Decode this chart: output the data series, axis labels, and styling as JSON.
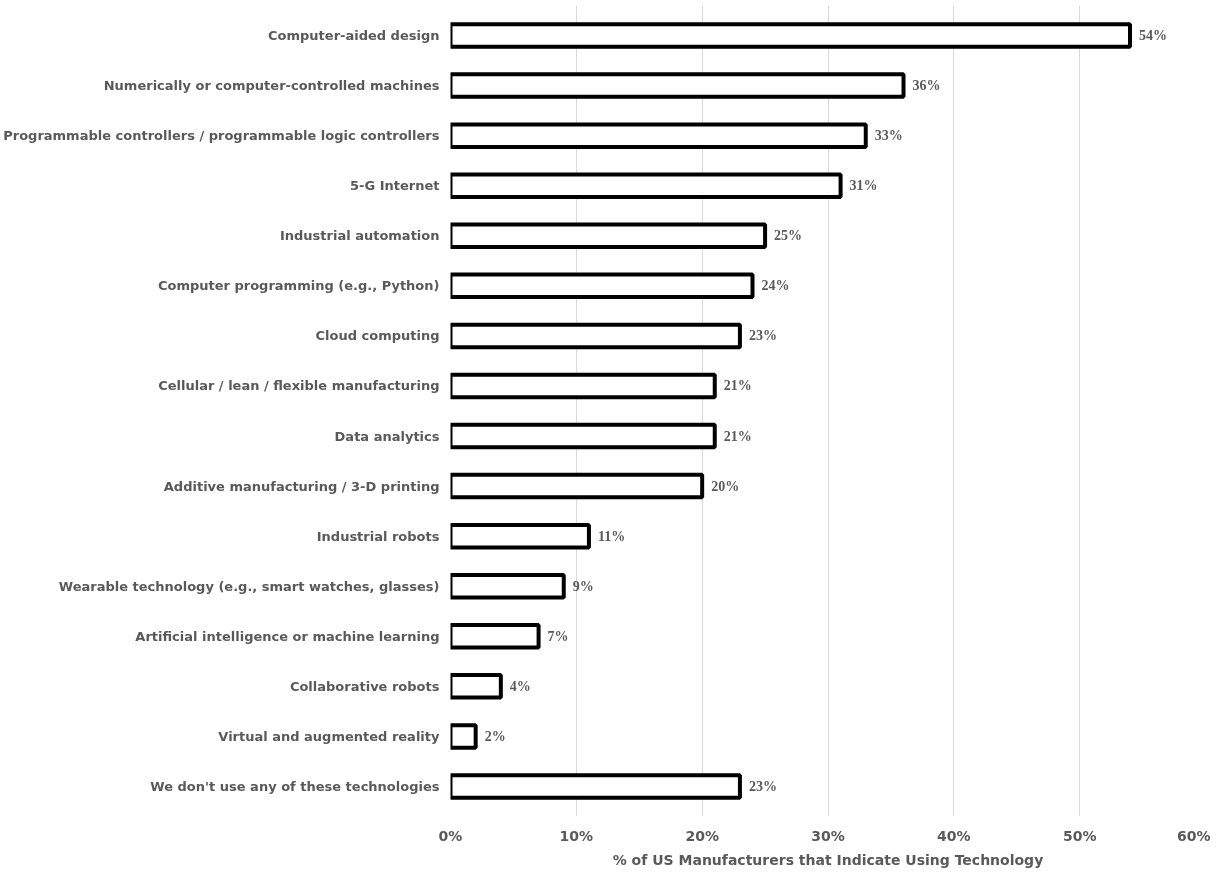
{
  "chart_data": {
    "type": "bar",
    "orientation": "horizontal",
    "xlabel": "% of US Manufacturers that Indicate Using Technology",
    "categories": [
      "Computer-aided design",
      "Numerically or computer-controlled machines",
      "Programmable controllers / programmable logic controllers",
      "5-G Internet",
      "Industrial automation",
      "Computer programming (e.g., Python)",
      "Cloud computing",
      "Cellular / lean / flexible manufacturing",
      "Data analytics",
      "Additive manufacturing / 3-D printing",
      "Industrial robots",
      "Wearable technology (e.g., smart watches, glasses)",
      "Artificial intelligence or machine learning",
      "Collaborative robots",
      "Virtual and augmented reality",
      "We don't use any of these technologies"
    ],
    "series": [
      {
        "color": "#ffffff",
        "values": [
          54,
          36,
          33,
          31,
          25,
          24,
          23,
          21,
          21,
          20,
          11,
          9,
          7,
          4,
          2,
          23
        ],
        "value_labels": [
          "54%",
          "36%",
          "33%",
          "31%",
          "25%",
          "24%",
          "23%",
          "21%",
          "21%",
          "20%",
          "11%",
          "9%",
          "7%",
          "4%",
          "2%",
          "23%"
        ]
      }
    ],
    "xlim": [
      0,
      60
    ],
    "xticks": [
      {
        "value": 0,
        "label": "0%"
      },
      {
        "value": 10,
        "label": "10%"
      },
      {
        "value": 20,
        "label": "20%"
      },
      {
        "value": 30,
        "label": "30%"
      },
      {
        "value": 40,
        "label": "40%"
      },
      {
        "value": 50,
        "label": "50%"
      },
      {
        "value": 60,
        "label": "60%"
      }
    ],
    "grid": "x"
  }
}
